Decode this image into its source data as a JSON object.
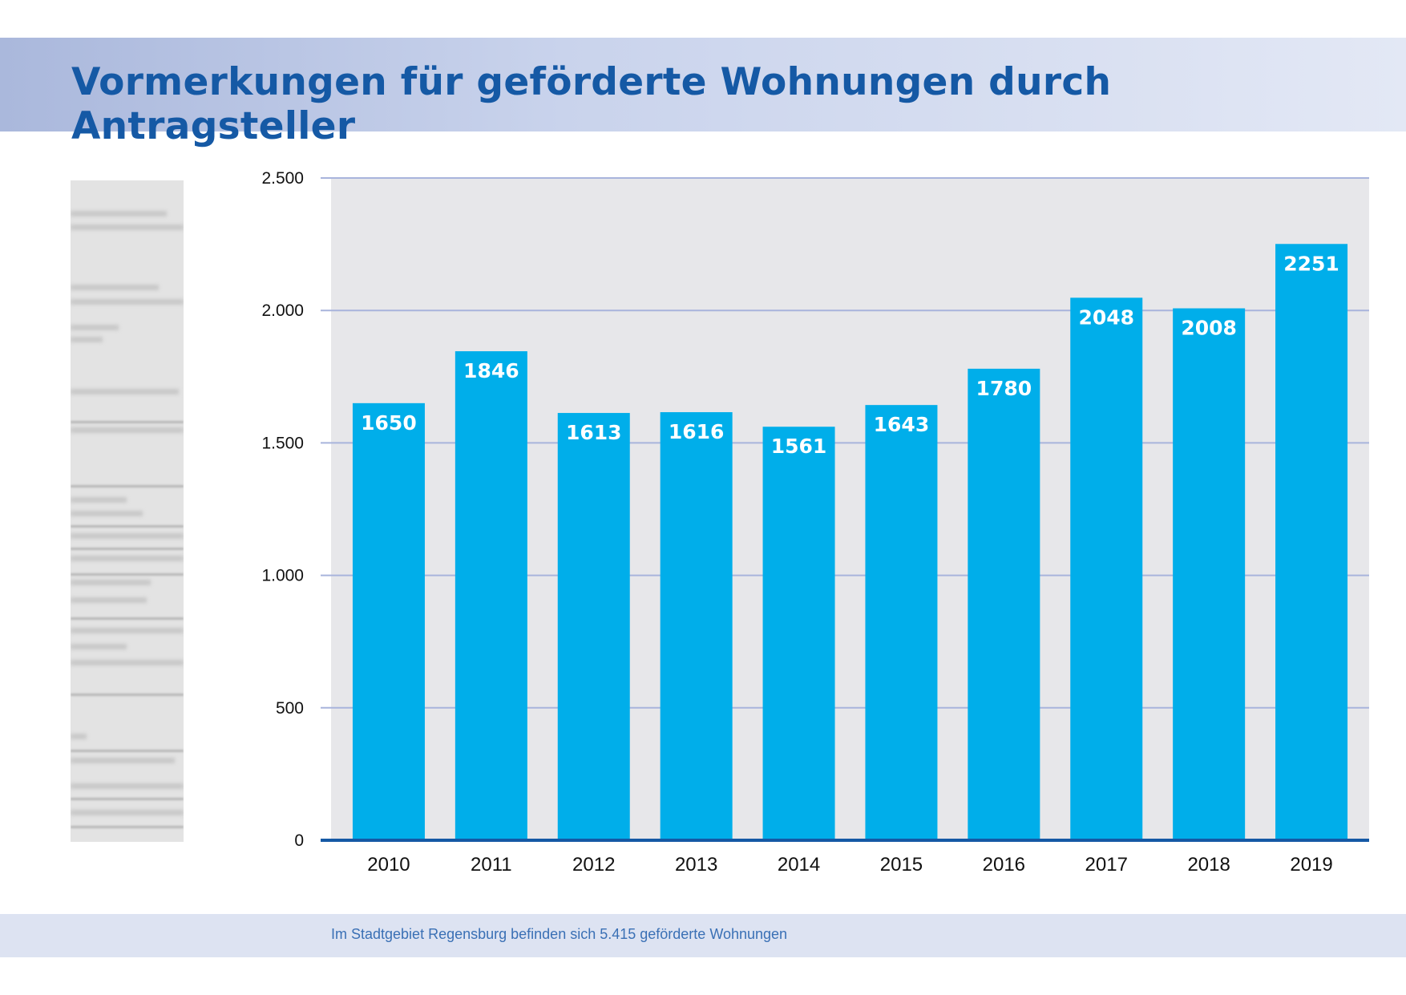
{
  "title": "Vormerkungen für geförderte Wohnungen durch Antragsteller",
  "footer_note": "Im Stadtgebiet Regensburg befinden sich 5.415 geförderte Wohnungen",
  "colors": {
    "bar": "#00aeea",
    "plot_background": "#e7e7ea",
    "gridline": "#a8b4dc",
    "axis": "#1559a5",
    "title": "#1559a5"
  },
  "chart_data": {
    "type": "bar",
    "title": "Vormerkungen für geförderte Wohnungen durch Antragsteller",
    "xlabel": "",
    "ylabel": "",
    "categories": [
      "2010",
      "2011",
      "2012",
      "2013",
      "2014",
      "2015",
      "2016",
      "2017",
      "2018",
      "2019"
    ],
    "values": [
      1650,
      1846,
      1613,
      1616,
      1561,
      1643,
      1780,
      2048,
      2008,
      2251
    ],
    "ylim": [
      0,
      2500
    ],
    "yticks": [
      0,
      500,
      1000,
      1500,
      2000,
      2500
    ],
    "ytick_labels": [
      "0",
      "500",
      "1.000",
      "1.500",
      "2.000",
      "2.500"
    ],
    "data_labels": [
      "1650",
      "1846",
      "1613",
      "1616",
      "1561",
      "1643",
      "1780",
      "2048",
      "2008",
      "2251"
    ],
    "grid": true,
    "legend": "none"
  }
}
